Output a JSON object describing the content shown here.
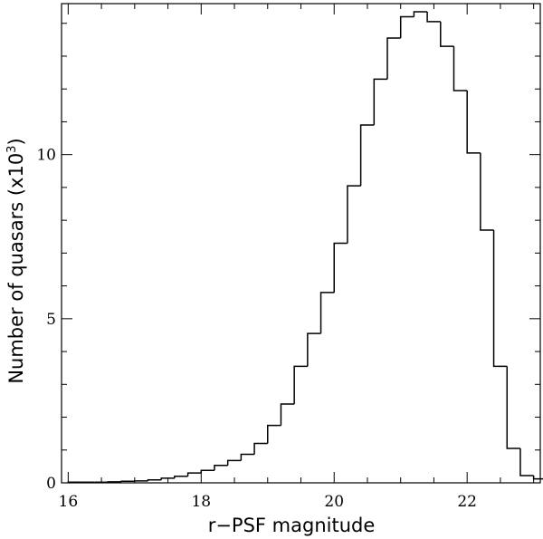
{
  "chart_data": {
    "type": "histogram",
    "xlabel": "r−PSF magnitude",
    "ylabel_main": "Number of quasars (x10",
    "ylabel_sup": "3",
    "ylabel_close": ")",
    "xlim": [
      15.9,
      23.1
    ],
    "ylim": [
      0,
      14.6
    ],
    "x_major_ticks": [
      16,
      18,
      20,
      22
    ],
    "x_minor_step": 0.5,
    "y_major_ticks": [
      0,
      5,
      10
    ],
    "y_minor_step": 1,
    "grid": false,
    "bin_width": 0.2,
    "bins_start": 16.0,
    "values": [
      0.02,
      0.02,
      0.02,
      0.03,
      0.05,
      0.06,
      0.09,
      0.14,
      0.2,
      0.3,
      0.38,
      0.53,
      0.68,
      0.87,
      1.2,
      1.75,
      2.4,
      3.55,
      4.55,
      5.8,
      7.3,
      9.05,
      10.9,
      12.3,
      13.55,
      14.2,
      14.35,
      14.05,
      13.3,
      11.95,
      10.05,
      7.7,
      3.55,
      1.05,
      0.22,
      0.12,
      0.05,
      0.03
    ]
  }
}
